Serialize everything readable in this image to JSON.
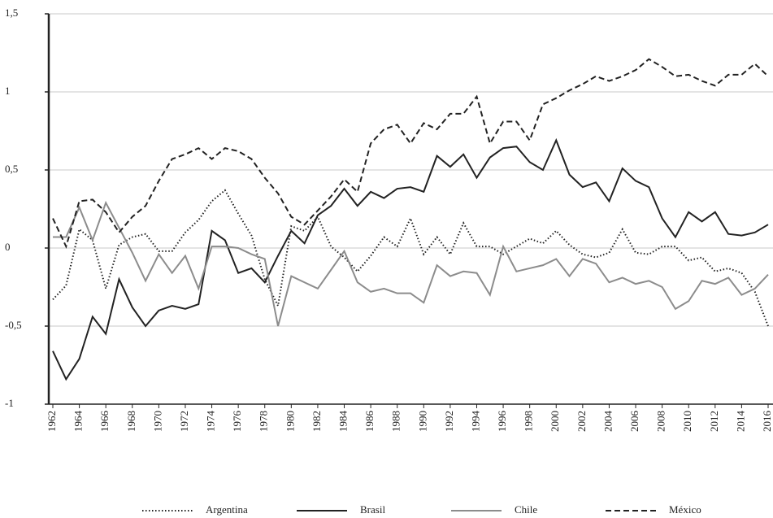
{
  "chart_data": {
    "type": "line",
    "x": [
      1962,
      1963,
      1964,
      1965,
      1966,
      1967,
      1968,
      1969,
      1970,
      1971,
      1972,
      1973,
      1974,
      1975,
      1976,
      1977,
      1978,
      1979,
      1980,
      1981,
      1982,
      1983,
      1984,
      1985,
      1986,
      1987,
      1988,
      1989,
      1990,
      1991,
      1992,
      1993,
      1994,
      1995,
      1996,
      1997,
      1998,
      1999,
      2000,
      2001,
      2002,
      2003,
      2004,
      2005,
      2006,
      2007,
      2008,
      2009,
      2010,
      2011,
      2012,
      2013,
      2014,
      2015,
      2016
    ],
    "xlim": [
      1962,
      2016
    ],
    "xticks": [
      1962,
      1964,
      1966,
      1968,
      1970,
      1972,
      1974,
      1976,
      1978,
      1980,
      1982,
      1984,
      1986,
      1988,
      1990,
      1992,
      1994,
      1996,
      1998,
      2000,
      2002,
      2004,
      2006,
      2008,
      2010,
      2012,
      2014,
      2016
    ],
    "ylim": [
      -1,
      1.5
    ],
    "yticks": [
      -1,
      {
        "value": -0.5,
        "label": "-0,5"
      },
      0,
      {
        "value": 0.5,
        "label": "0,5"
      },
      1,
      {
        "value": 1.5,
        "label": "1,5"
      }
    ],
    "grid": true,
    "legend": "bottom",
    "series": [
      {
        "name": "Argentina",
        "color": "#222222",
        "line_style": "dotted",
        "values": [
          -0.33,
          -0.24,
          0.12,
          0.05,
          -0.26,
          0.02,
          0.07,
          0.09,
          -0.02,
          -0.02,
          0.1,
          0.18,
          0.3,
          0.37,
          0.22,
          0.08,
          -0.2,
          -0.37,
          0.14,
          0.11,
          0.2,
          0.01,
          -0.06,
          -0.15,
          -0.05,
          0.07,
          0.01,
          0.19,
          -0.04,
          0.07,
          -0.04,
          0.16,
          0.01,
          0.01,
          -0.04,
          0.01,
          0.06,
          0.03,
          0.11,
          0.02,
          -0.04,
          -0.06,
          -0.03,
          0.12,
          -0.03,
          -0.04,
          0.01,
          0.01,
          -0.08,
          -0.06,
          -0.15,
          -0.13,
          -0.16,
          -0.28,
          -0.5
        ]
      },
      {
        "name": "Brasil",
        "color": "#222222",
        "line_style": "solid",
        "values": [
          -0.66,
          -0.84,
          -0.71,
          -0.44,
          -0.55,
          -0.2,
          -0.38,
          -0.5,
          -0.4,
          -0.37,
          -0.39,
          -0.36,
          0.11,
          0.05,
          -0.16,
          -0.13,
          -0.22,
          -0.05,
          0.11,
          0.03,
          0.21,
          0.27,
          0.38,
          0.27,
          0.36,
          0.32,
          0.38,
          0.39,
          0.36,
          0.59,
          0.52,
          0.6,
          0.45,
          0.58,
          0.64,
          0.65,
          0.55,
          0.5,
          0.69,
          0.47,
          0.39,
          0.42,
          0.3,
          0.51,
          0.43,
          0.39,
          0.19,
          0.07,
          0.23,
          0.17,
          0.23,
          0.09,
          0.08,
          0.1,
          0.15
        ]
      },
      {
        "name": "Chile",
        "color": "#8c8c8c",
        "line_style": "solid",
        "values": [
          0.07,
          0.07,
          0.26,
          0.05,
          0.29,
          0.13,
          -0.03,
          -0.21,
          -0.04,
          -0.16,
          -0.05,
          -0.26,
          0.01,
          0.01,
          0,
          -0.04,
          -0.07,
          -0.5,
          -0.18,
          -0.22,
          -0.26,
          -0.14,
          -0.02,
          -0.22,
          -0.28,
          -0.26,
          -0.29,
          -0.29,
          -0.35,
          -0.11,
          -0.18,
          -0.15,
          -0.16,
          -0.3,
          0.01,
          -0.15,
          -0.13,
          -0.11,
          -0.07,
          -0.18,
          -0.07,
          -0.1,
          -0.22,
          -0.19,
          -0.23,
          -0.21,
          -0.25,
          -0.39,
          -0.34,
          -0.21,
          -0.23,
          -0.19,
          -0.3,
          -0.26,
          -0.17
        ]
      },
      {
        "name": "México",
        "color": "#222222",
        "line_style": "dashed",
        "values": [
          0.19,
          0.01,
          0.3,
          0.31,
          0.23,
          0.1,
          0.2,
          0.27,
          0.43,
          0.57,
          0.6,
          0.64,
          0.57,
          0.64,
          0.62,
          0.57,
          0.45,
          0.35,
          0.2,
          0.15,
          0.24,
          0.33,
          0.44,
          0.36,
          0.67,
          0.76,
          0.79,
          0.67,
          0.8,
          0.76,
          0.86,
          0.86,
          0.97,
          0.67,
          0.81,
          0.81,
          0.69,
          0.92,
          0.96,
          1.01,
          1.05,
          1.1,
          1.07,
          1.1,
          1.14,
          1.21,
          1.16,
          1.1,
          1.11,
          1.07,
          1.04,
          1.11,
          1.11,
          1.18,
          1.1
        ]
      }
    ]
  }
}
